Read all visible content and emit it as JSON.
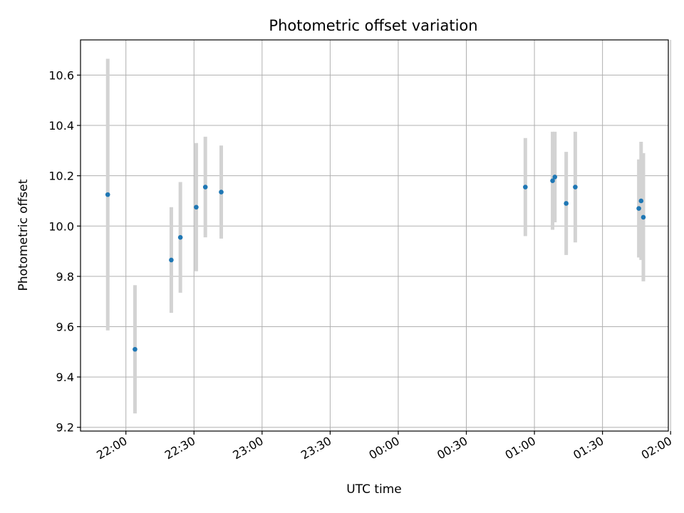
{
  "chart_data": {
    "type": "scatter",
    "title": "Photometric offset variation",
    "xlabel": "UTC time",
    "ylabel": "Photometric offset",
    "x_axis_type": "time",
    "xlim": [
      "21:40",
      "01:59"
    ],
    "ylim": [
      9.185,
      10.74
    ],
    "x_ticks": [
      "22:00",
      "22:30",
      "23:00",
      "23:30",
      "00:00",
      "00:30",
      "01:00",
      "01:30",
      "02:00"
    ],
    "y_ticks": [
      "9.2",
      "9.4",
      "9.6",
      "9.8",
      "10.0",
      "10.2",
      "10.4",
      "10.6"
    ],
    "grid": true,
    "colors": {
      "marker": "#1f77b4",
      "errorbar": "#d3d3d3",
      "grid": "#b0b0b0"
    },
    "series": [
      {
        "points": [
          {
            "x": "21:52",
            "y": 10.125,
            "err": 0.54
          },
          {
            "x": "22:04",
            "y": 9.51,
            "err": 0.255
          },
          {
            "x": "22:20",
            "y": 9.865,
            "err": 0.21
          },
          {
            "x": "22:24",
            "y": 9.955,
            "err": 0.22
          },
          {
            "x": "22:31",
            "y": 10.075,
            "err": 0.255
          },
          {
            "x": "22:35",
            "y": 10.155,
            "err": 0.2
          },
          {
            "x": "22:42",
            "y": 10.135,
            "err": 0.185
          },
          {
            "x": "00:56",
            "y": 10.155,
            "err": 0.195
          },
          {
            "x": "01:08",
            "y": 10.18,
            "err": 0.195
          },
          {
            "x": "01:09",
            "y": 10.195,
            "err": 0.18
          },
          {
            "x": "01:14",
            "y": 10.09,
            "err": 0.205
          },
          {
            "x": "01:18",
            "y": 10.155,
            "err": 0.22
          },
          {
            "x": "01:46",
            "y": 10.07,
            "err": 0.195
          },
          {
            "x": "01:47",
            "y": 10.1,
            "err": 0.235
          },
          {
            "x": "01:48",
            "y": 10.035,
            "err": 0.255
          }
        ]
      }
    ]
  }
}
